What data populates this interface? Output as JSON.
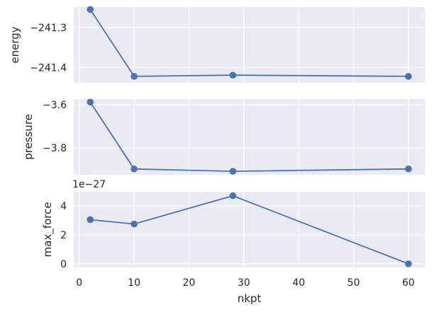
{
  "chart_data": {
    "type": "line",
    "shared_x_label": "nkpt",
    "x_ticks": [
      0,
      10,
      20,
      30,
      40,
      50,
      60
    ],
    "x_lim": [
      -1,
      63
    ],
    "x": [
      2,
      10,
      28,
      60
    ],
    "panels": [
      {
        "ylabel": "energy",
        "values": [
          -241.255,
          -241.422,
          -241.419,
          -241.422
        ],
        "ylim": [
          -241.438,
          -241.249
        ],
        "yticks": [
          -241.3,
          -241.4
        ],
        "ytick_labels": [
          "−241.3",
          "−241.4"
        ],
        "offset_text": ""
      },
      {
        "ylabel": "pressure",
        "values": [
          -3.587,
          -3.897,
          -3.908,
          -3.897
        ],
        "ylim": [
          -3.924,
          -3.573
        ],
        "yticks": [
          -3.6,
          -3.8
        ],
        "ytick_labels": [
          "−3.6",
          "−3.8"
        ],
        "offset_text": ""
      },
      {
        "ylabel": "max_force",
        "values": [
          3.05,
          2.75,
          4.7,
          0.0
        ],
        "ylim": [
          -0.25,
          4.98
        ],
        "yticks": [
          0,
          2,
          4
        ],
        "ytick_labels": [
          "0",
          "2",
          "4"
        ],
        "offset_text": "1e−27"
      }
    ],
    "grid": true,
    "series_color": "#4c72b0",
    "background_color": "#eaeaf2"
  }
}
